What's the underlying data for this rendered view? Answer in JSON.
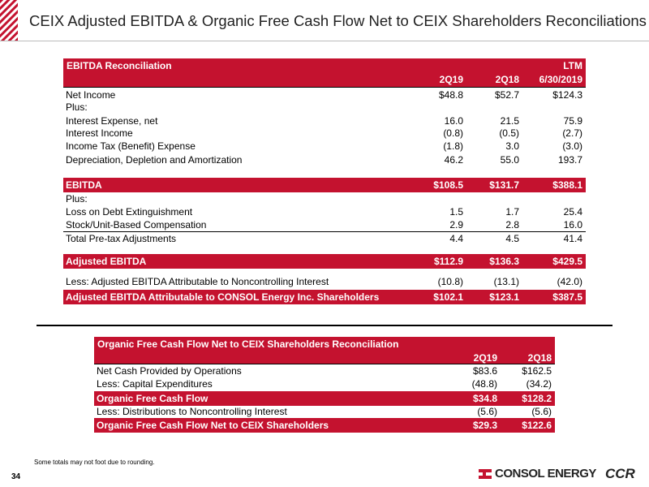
{
  "header": {
    "title": "CEIX Adjusted EBITDA & Organic Free Cash Flow Net to CEIX Shareholders Reconciliations"
  },
  "ebitda_table": {
    "title": "EBITDA Reconciliation",
    "ltm_label": "LTM",
    "columns": [
      "2Q19",
      "2Q18",
      "6/30/2019"
    ],
    "rows": [
      [
        "Net Income",
        "$48.8",
        "$52.7",
        "$124.3"
      ],
      [
        "Plus:"
      ],
      [
        "Interest Expense, net",
        "16.0",
        "21.5",
        "75.9"
      ],
      [
        "Interest Income",
        "(0.8)",
        "(0.5)",
        "(2.7)"
      ],
      [
        "Income Tax (Benefit) Expense",
        "(1.8)",
        "3.0",
        "(3.0)"
      ],
      [
        "Depreciation, Depletion and Amortization",
        "46.2",
        "55.0",
        "193.7"
      ],
      [
        "EBITDA",
        "$108.5",
        "$131.7",
        "$388.1"
      ],
      [
        "Plus:"
      ],
      [
        "Loss on Debt Extinguishment",
        "1.5",
        "1.7",
        "25.4"
      ],
      [
        "Stock/Unit-Based Compensation",
        "2.9",
        "2.8",
        "16.0"
      ],
      [
        "Total Pre-tax Adjustments",
        "4.4",
        "4.5",
        "41.4"
      ],
      [
        "Adjusted EBITDA",
        "$112.9",
        "$136.3",
        "$429.5"
      ],
      [
        "Less:  Adjusted EBITDA Attributable to Noncontrolling Interest",
        "(10.8)",
        "(13.1)",
        "(42.0)"
      ],
      [
        "Adjusted EBITDA Attributable to CONSOL Energy Inc. Shareholders",
        "$102.1",
        "$123.1",
        "$387.5"
      ]
    ]
  },
  "fcf_table": {
    "title": "Organic Free Cash Flow Net to CEIX Shareholders Reconciliation",
    "columns": [
      "2Q19",
      "2Q18"
    ],
    "rows": [
      [
        "Net Cash Provided by Operations",
        "$83.6",
        "$162.5"
      ],
      [
        "Less: Capital Expenditures",
        "(48.8)",
        "(34.2)"
      ],
      [
        "Organic Free Cash Flow",
        "$34.8",
        "$128.2"
      ],
      [
        "Less: Distributions to Noncontrolling Interest",
        "(5.6)",
        "(5.6)"
      ],
      [
        "Organic Free Cash Flow Net to CEIX Shareholders",
        "$29.3",
        "$122.6"
      ]
    ]
  },
  "footnote": "Some totals may not foot due to rounding.",
  "page_number": "34",
  "logo": "CONSOL ENERGY",
  "logo_secondary": "CCR"
}
